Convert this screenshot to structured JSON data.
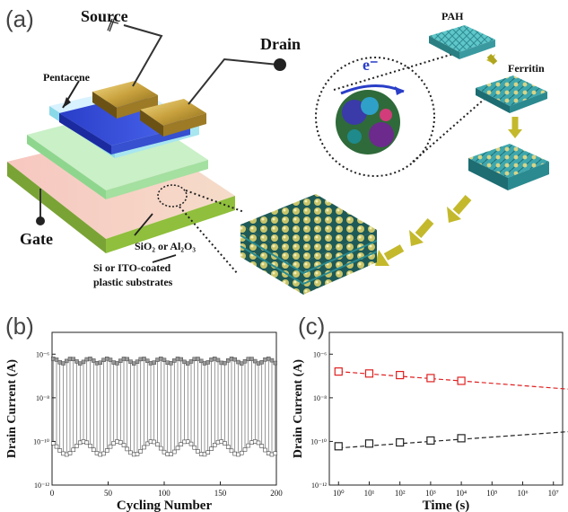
{
  "panel_a": {
    "label": "(a)",
    "labels": {
      "source": "Source",
      "drain": "Drain",
      "pentacene": "Pentacene",
      "gate": "Gate",
      "dielectric": "SiO₂ or Al₂O₃",
      "substrate_line1": "Si or ITO-coated",
      "substrate_line2": "plastic substrates",
      "pah": "PAH",
      "ferritin": "Ferritin",
      "electron": "e⁻"
    }
  },
  "chart_data": [
    {
      "panel": "(b)",
      "type": "line",
      "xlabel": "Cycling Number",
      "ylabel": "Drain Current (A)",
      "xlim": [
        0,
        200
      ],
      "ylim_log10": [
        -12,
        -5
      ],
      "yscale": "log",
      "x_ticks": [
        "0",
        "50",
        "100",
        "150",
        "200"
      ],
      "y_ticks": [
        "10⁻¹²",
        "10⁻¹⁰",
        "10⁻⁸",
        "10⁻⁶"
      ],
      "series": [
        {
          "marker": "square-filled-gray",
          "approx_value": "5e-7",
          "x_start": 1,
          "x_end": 200
        },
        {
          "marker": "square-open",
          "approx_value": "5e-11",
          "x_start": 1,
          "x_end": 200
        }
      ]
    },
    {
      "panel": "(c)",
      "type": "scatter",
      "xlabel": "Time (s)",
      "ylabel": "Drain Current (A)",
      "xscale": "log",
      "yscale": "log",
      "xlim_log10": [
        -0.3,
        7.3
      ],
      "ylim_log10": [
        -12,
        -5
      ],
      "x_ticks": [
        "10⁰",
        "10¹",
        "10²",
        "10³",
        "10⁴",
        "10⁵",
        "10⁶",
        "10⁷"
      ],
      "y_ticks": [
        "10⁻¹²",
        "10⁻¹⁰",
        "10⁻⁸",
        "10⁻⁶"
      ],
      "series": [
        {
          "color": "#e02020",
          "x": [
            1,
            10,
            100,
            1000,
            10000
          ],
          "y": [
            1.6e-07,
            1.3e-07,
            1.1e-07,
            8e-08,
            6e-08
          ],
          "fit": {
            "x": [
              1,
              30000000
            ],
            "y": [
              1.6e-07,
              2.5e-08
            ]
          }
        },
        {
          "color": "#222222",
          "x": [
            1,
            10,
            100,
            1000,
            10000
          ],
          "y": [
            6e-11,
            8e-11,
            9e-11,
            1.1e-10,
            1.4e-10
          ],
          "fit": {
            "x": [
              1,
              30000000
            ],
            "y": [
              5e-11,
              2.8e-10
            ]
          }
        }
      ]
    }
  ],
  "panel_b": {
    "label": "(b)"
  },
  "panel_c": {
    "label": "(c)"
  }
}
